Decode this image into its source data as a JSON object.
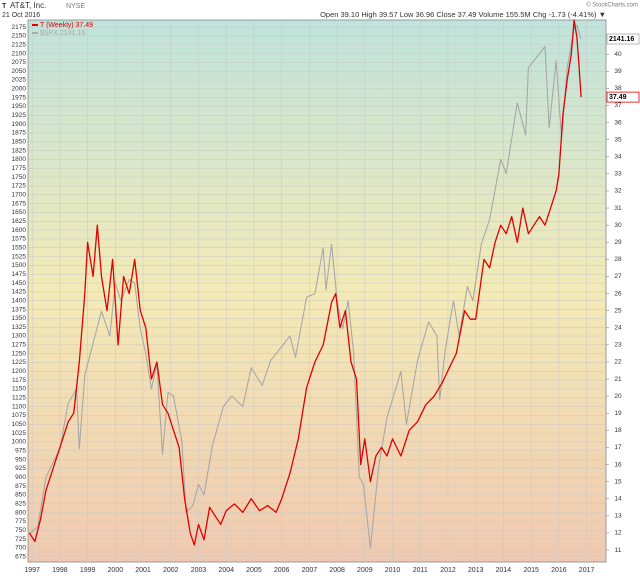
{
  "chart_data": {
    "type": "line",
    "title": "AT&T, Inc.",
    "exchange": "NYSE",
    "ticker_icon": "T",
    "date": "21 Oct 2016",
    "quote": "Open 39.10  High 39.57  Low 36.96  Close 37.49  Volume 155.5M  Chg -1.73 (-4.41%) ▼",
    "credit": "© StockCharts.com",
    "xlim": [
      1996.85,
      2017.7
    ],
    "xticks": [
      1997,
      1998,
      1999,
      2000,
      2001,
      2002,
      2003,
      2004,
      2005,
      2006,
      2007,
      2008,
      2009,
      2010,
      2011,
      2012,
      2013,
      2014,
      2015,
      2016,
      2017
    ],
    "ylim": [
      660,
      2195
    ],
    "yticks": [
      675,
      700,
      725,
      750,
      775,
      800,
      825,
      850,
      875,
      900,
      925,
      950,
      975,
      1000,
      1025,
      1050,
      1075,
      1100,
      1125,
      1150,
      1175,
      1200,
      1225,
      1250,
      1275,
      1300,
      1325,
      1350,
      1375,
      1400,
      1425,
      1450,
      1475,
      1500,
      1525,
      1550,
      1575,
      1600,
      1625,
      1650,
      1675,
      1700,
      1725,
      1750,
      1775,
      1800,
      1825,
      1850,
      1875,
      1900,
      1925,
      1950,
      1975,
      2000,
      2025,
      2050,
      2075,
      2100,
      2125,
      2150,
      2175
    ],
    "y2lim": [
      10.3,
      42
    ],
    "y2ticks": [
      11,
      12,
      13,
      14,
      15,
      16,
      17,
      18,
      19,
      20,
      21,
      22,
      23,
      24,
      25,
      26,
      27,
      28,
      29,
      30,
      31,
      32,
      33,
      34,
      35,
      36,
      37,
      38,
      39,
      40,
      41
    ],
    "grid": true,
    "series": [
      {
        "name": "$SPX 2141.16",
        "color": "#a8a8a8",
        "axis": "y",
        "last_label": "2141.16",
        "x": [
          1996.9,
          1997.2,
          1997.5,
          1997.8,
          1998.0,
          1998.3,
          1998.6,
          1998.7,
          1998.9,
          1999.2,
          1999.5,
          1999.8,
          2000.0,
          2000.2,
          2000.5,
          2000.7,
          2000.9,
          2001.1,
          2001.3,
          2001.5,
          2001.7,
          2001.9,
          2002.1,
          2002.4,
          2002.55,
          2002.8,
          2003.0,
          2003.2,
          2003.5,
          2003.9,
          2004.2,
          2004.6,
          2004.9,
          2005.3,
          2005.6,
          2005.9,
          2006.3,
          2006.5,
          2006.9,
          2007.2,
          2007.5,
          2007.6,
          2007.8,
          2008.0,
          2008.2,
          2008.4,
          2008.6,
          2008.8,
          2008.95,
          2009.2,
          2009.5,
          2009.8,
          2010.0,
          2010.3,
          2010.5,
          2010.9,
          2011.3,
          2011.6,
          2011.7,
          2011.9,
          2012.2,
          2012.4,
          2012.7,
          2012.9,
          2013.2,
          2013.5,
          2013.9,
          2014.1,
          2014.5,
          2014.8,
          2014.9,
          2015.3,
          2015.5,
          2015.65,
          2015.9,
          2016.1,
          2016.3,
          2016.55,
          2016.65,
          2016.8
        ],
        "values": [
          740,
          760,
          900,
          950,
          980,
          1110,
          1150,
          980,
          1190,
          1280,
          1370,
          1300,
          1450,
          1400,
          1460,
          1450,
          1320,
          1250,
          1150,
          1220,
          965,
          1140,
          1130,
          1000,
          800,
          820,
          880,
          850,
          990,
          1100,
          1130,
          1100,
          1210,
          1160,
          1230,
          1260,
          1300,
          1240,
          1410,
          1420,
          1550,
          1430,
          1560,
          1400,
          1320,
          1400,
          1250,
          900,
          880,
          700,
          930,
          1070,
          1120,
          1200,
          1050,
          1230,
          1340,
          1300,
          1120,
          1260,
          1400,
          1300,
          1440,
          1400,
          1560,
          1630,
          1800,
          1760,
          1960,
          1870,
          2060,
          2100,
          2120,
          1890,
          2080,
          1860,
          2060,
          2170,
          2180,
          2141.16
        ]
      },
      {
        "name": "T (Weekly) 37.49",
        "color": "#e00000",
        "axis": "y2",
        "last_label": "37.49",
        "x": [
          1996.9,
          1997.1,
          1997.3,
          1997.5,
          1997.7,
          1997.9,
          1998.1,
          1998.3,
          1998.5,
          1998.7,
          1998.9,
          1999.0,
          1999.2,
          1999.35,
          1999.5,
          1999.7,
          1999.9,
          2000.1,
          2000.3,
          2000.5,
          2000.7,
          2000.9,
          2001.1,
          2001.3,
          2001.5,
          2001.7,
          2001.9,
          2002.1,
          2002.3,
          2002.5,
          2002.7,
          2002.85,
          2003.0,
          2003.2,
          2003.4,
          2003.6,
          2003.8,
          2004.0,
          2004.3,
          2004.6,
          2004.9,
          2005.2,
          2005.5,
          2005.8,
          2006.0,
          2006.3,
          2006.6,
          2006.9,
          2007.2,
          2007.5,
          2007.8,
          2007.95,
          2008.1,
          2008.3,
          2008.5,
          2008.7,
          2008.85,
          2009.0,
          2009.2,
          2009.4,
          2009.6,
          2009.8,
          2010.0,
          2010.3,
          2010.6,
          2010.9,
          2011.2,
          2011.5,
          2011.8,
          2012.0,
          2012.3,
          2012.6,
          2012.8,
          2013.0,
          2013.3,
          2013.5,
          2013.7,
          2013.9,
          2014.1,
          2014.3,
          2014.5,
          2014.7,
          2014.9,
          2015.1,
          2015.3,
          2015.5,
          2015.7,
          2015.9,
          2016.0,
          2016.15,
          2016.3,
          2016.45,
          2016.55,
          2016.65,
          2016.72,
          2016.8
        ],
        "values": [
          12.0,
          11.5,
          12.8,
          14.5,
          15.5,
          16.5,
          17.5,
          18.5,
          19.0,
          22,
          26,
          29,
          27,
          30,
          27,
          25,
          28,
          23,
          27,
          26,
          28,
          25,
          24,
          21,
          22,
          19.5,
          19,
          18,
          17,
          14,
          12,
          11.3,
          12.5,
          11.6,
          13.5,
          13,
          12.5,
          13.3,
          13.7,
          13.2,
          14,
          13.3,
          13.6,
          13.2,
          14,
          15.5,
          17.5,
          20.5,
          22,
          23,
          25.5,
          26,
          24,
          25,
          22,
          21,
          16,
          17.5,
          15,
          16.5,
          17,
          16.5,
          17.5,
          16.5,
          18,
          18.5,
          19.5,
          20,
          20.8,
          21.5,
          22.5,
          25,
          24.5,
          24.5,
          28,
          27.5,
          29,
          30,
          29.5,
          30.5,
          29,
          31,
          29.5,
          30,
          30.5,
          30,
          31,
          32,
          33,
          36.5,
          38.5,
          40,
          42,
          41,
          39.5,
          37.49
        ]
      }
    ]
  }
}
